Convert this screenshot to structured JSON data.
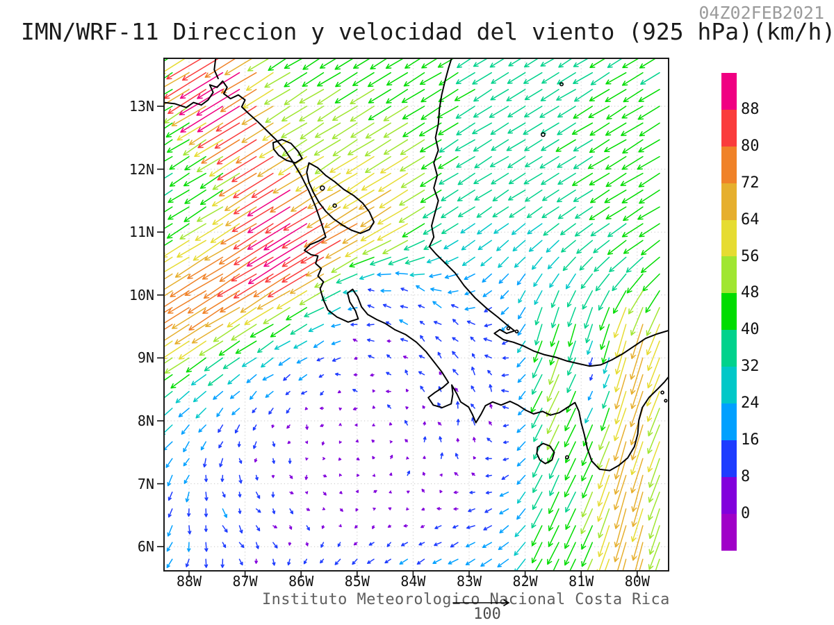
{
  "header": {
    "timestamp": "04Z02FEB2021",
    "title": "IMN/WRF-11 Direccion y velocidad del viento (925 hPa)(km/h)"
  },
  "footer": {
    "institute": "Instituto Meteorologico Nacional Costa Rica",
    "reference_label": "100"
  },
  "axes": {
    "lat_ticks": [
      {
        "label": "13N",
        "value": 13
      },
      {
        "label": "12N",
        "value": 12
      },
      {
        "label": "11N",
        "value": 11
      },
      {
        "label": "10N",
        "value": 10
      },
      {
        "label": "9N",
        "value": 9
      },
      {
        "label": "8N",
        "value": 8
      },
      {
        "label": "7N",
        "value": 7
      },
      {
        "label": "6N",
        "value": 6
      }
    ],
    "lon_ticks": [
      {
        "label": "88W",
        "value": -88
      },
      {
        "label": "87W",
        "value": -87
      },
      {
        "label": "86W",
        "value": -86
      },
      {
        "label": "85W",
        "value": -85
      },
      {
        "label": "84W",
        "value": -84
      },
      {
        "label": "83W",
        "value": -83
      },
      {
        "label": "82W",
        "value": -82
      },
      {
        "label": "81W",
        "value": -81
      },
      {
        "label": "80W",
        "value": -80
      }
    ]
  },
  "colorbar": {
    "labels_top_to_bottom": [
      "88",
      "80",
      "72",
      "64",
      "56",
      "48",
      "40",
      "32",
      "24",
      "16",
      "8",
      "0"
    ]
  },
  "chart_data": {
    "type": "vector_field",
    "title": "IMN/WRF-11 Direccion y velocidad del viento (925 hPa)(km/h)",
    "time": "04Z02FEB2021",
    "level_hpa": 925,
    "units": "km/h",
    "lon_range": [
      -88.45,
      -79.44
    ],
    "lat_range": [
      5.62,
      13.76
    ],
    "grid_step_deg": 0.3,
    "reference_vector": 100,
    "legend_position": "right",
    "grid_lat_lines": [
      6,
      7,
      8,
      9,
      10,
      11,
      12,
      13
    ],
    "grid_lon_lines": [
      -88,
      -87,
      -86,
      -85,
      -84,
      -83,
      -82,
      -81,
      -80
    ],
    "speed_levels": [
      0,
      8,
      16,
      24,
      32,
      40,
      48,
      56,
      64,
      72,
      80,
      88
    ],
    "speed_colors_ascending": [
      "#A000C8",
      "#8200DC",
      "#1E3CFF",
      "#00A0FF",
      "#00C8C8",
      "#00D28C",
      "#00DC00",
      "#A0E632",
      "#E6DC32",
      "#E6AF2D",
      "#F08228",
      "#FA3C3C",
      "#F00082"
    ],
    "wind_model": {
      "base": {
        "u": -26,
        "v": -16
      },
      "additive": [
        {
          "name": "caribbean-east",
          "lon": -79.6,
          "slon": 1.3,
          "lat": 11.8,
          "slat": 2.6,
          "u": -12,
          "v": -7
        },
        {
          "name": "top-center-green",
          "lon": -84.3,
          "slon": 1.6,
          "lat": 13.2,
          "slat": 1.3,
          "u": -10,
          "v": -6
        },
        {
          "name": "nicaragua-band",
          "lon": -86.6,
          "slon": 1.6,
          "lat": 12.4,
          "slat": 1.1,
          "u": -12,
          "v": -8
        },
        {
          "name": "hotspot-west",
          "lon": -86.2,
          "slon": 0.55,
          "lat": 10.95,
          "slat": 0.4,
          "u": -8,
          "v": -5
        },
        {
          "name": "hotspot-papagayo",
          "lon": -85.75,
          "slon": 0.5,
          "lat": 10.4,
          "slat": 0.35,
          "u": -6,
          "v": -4
        },
        {
          "name": "fonseca-gap",
          "lon": -87.35,
          "slon": 0.6,
          "lat": 13.5,
          "slat": 0.5,
          "u": -34,
          "v": -20
        },
        {
          "name": "panama-caribbean-turn",
          "lon": -81.6,
          "slon": 1.3,
          "lat": 9.95,
          "slat": 0.75,
          "u": 16,
          "v": -4
        },
        {
          "name": "cr-westward-gap",
          "lon": -84.05,
          "slon": 0.6,
          "lat": 9.95,
          "slat": 0.5,
          "u": -18,
          "v": 6
        }
      ],
      "line_jets": [
        {
          "name": "papagayo-jet",
          "lon_ref": -85.3,
          "lat0": 10.75,
          "slope": 0.35,
          "width": 0.8,
          "lon_c": -87.4,
          "lon_s": 3.0,
          "east_cut": -84.2,
          "east_s": 0.4,
          "u": -44,
          "v": -27
        },
        {
          "name": "nicaragua-coast-jet",
          "lon_ref": -87.4,
          "lat0": 13.2,
          "slope": -1.28,
          "width": 0.55,
          "lon_c": -86.7,
          "lon_s": 0.8,
          "east_cut": -85.2,
          "east_s": 0.5,
          "u": -30,
          "v": -18
        }
      ],
      "wake": {
        "max": 0.96,
        "blobs": [
          {
            "lon": -85.2,
            "slon": 2.2,
            "lat": 7.55,
            "slat": 1.3,
            "a": 1.1
          },
          {
            "lon": -83.55,
            "slon": 1.0,
            "lat": 8.75,
            "slat": 0.8,
            "a": 0.9
          },
          {
            "lon": -84.35,
            "slon": 0.75,
            "lat": 9.9,
            "slat": 0.55,
            "a": 0.85
          },
          {
            "lon": -87.3,
            "slon": 1.0,
            "lat": 6.2,
            "slat": 0.9,
            "a": 0.6
          }
        ]
      },
      "gyre": {
        "lon": -85.2,
        "lat": 7.7,
        "s": 5
      },
      "noise": {
        "amp": 3.2
      },
      "south_jets": [
        {
          "name": "panama-jet-west",
          "lon": -81.62,
          "slon": 0.28,
          "lat_cut": 9.2,
          "lat_s": 0.5,
          "u": 0,
          "v": -14
        },
        {
          "name": "panama-jet-broad",
          "lon": -80.55,
          "slon": 0.85,
          "lat_cut": 9.3,
          "lat_s": 0.55,
          "u": 5,
          "v": -30
        },
        {
          "name": "panama-jet-yellow",
          "lon": -80.15,
          "slon": 0.3,
          "lat_cut": 9.0,
          "lat_s": 0.6,
          "u": 0,
          "v": -18
        },
        {
          "name": "panama-jet-east",
          "lon": -79.55,
          "slon": 0.45,
          "lat_cut": 9.5,
          "lat_s": 0.6,
          "u": 6,
          "v": -16
        }
      ],
      "spots": [
        {
          "name": "chiriqui-gap",
          "lon": -81.1,
          "slon": 0.4,
          "lat": 8.5,
          "slat": 0.5,
          "u": -8,
          "v": -20
        }
      ],
      "lee": [
        {
          "lon": -80.75,
          "slon": 0.3,
          "lat": 8.75,
          "slat": 0.55,
          "a": 0.85
        }
      ],
      "jitter": {
        "u": 0.05,
        "v": 0.05
      },
      "speed_cap": {
        "start": 84,
        "soft": 9,
        "range": 6
      }
    }
  },
  "map": {
    "coastlines": {
      "pacific": [
        [
          -88.45,
          13.06
        ],
        [
          -88.25,
          13.04
        ],
        [
          -88.05,
          12.98
        ],
        [
          -87.92,
          13.06
        ],
        [
          -87.78,
          13.02
        ],
        [
          -87.66,
          13.1
        ],
        [
          -87.57,
          13.22
        ],
        [
          -87.63,
          13.34
        ],
        [
          -87.5,
          13.3
        ],
        [
          -87.4,
          13.4
        ],
        [
          -87.32,
          13.3
        ],
        [
          -87.38,
          13.2
        ],
        [
          -87.26,
          13.12
        ],
        [
          -87.12,
          13.18
        ],
        [
          -87.0,
          13.1
        ],
        [
          -87.06,
          12.99
        ],
        [
          -86.93,
          12.88
        ],
        [
          -86.78,
          12.76
        ],
        [
          -86.62,
          12.62
        ],
        [
          -86.46,
          12.48
        ],
        [
          -86.3,
          12.32
        ],
        [
          -86.15,
          12.12
        ],
        [
          -86.0,
          11.9
        ],
        [
          -85.86,
          11.65
        ],
        [
          -85.74,
          11.4
        ],
        [
          -85.64,
          11.15
        ],
        [
          -85.56,
          10.92
        ],
        [
          -85.68,
          10.86
        ],
        [
          -85.84,
          10.8
        ],
        [
          -85.94,
          10.71
        ],
        [
          -85.82,
          10.64
        ],
        [
          -85.7,
          10.62
        ],
        [
          -85.74,
          10.5
        ],
        [
          -85.64,
          10.42
        ],
        [
          -85.7,
          10.3
        ],
        [
          -85.6,
          10.21
        ],
        [
          -85.66,
          10.1
        ],
        [
          -85.6,
          9.92
        ],
        [
          -85.52,
          9.76
        ],
        [
          -85.36,
          9.65
        ],
        [
          -85.16,
          9.57
        ],
        [
          -84.98,
          9.62
        ],
        [
          -85.03,
          9.75
        ],
        [
          -85.13,
          9.89
        ],
        [
          -85.17,
          10.03
        ],
        [
          -85.08,
          10.09
        ],
        [
          -84.99,
          9.97
        ],
        [
          -84.92,
          9.81
        ],
        [
          -84.81,
          9.69
        ],
        [
          -84.65,
          9.61
        ],
        [
          -84.5,
          9.55
        ],
        [
          -84.33,
          9.45
        ],
        [
          -84.13,
          9.37
        ],
        [
          -83.94,
          9.25
        ],
        [
          -83.77,
          9.1
        ],
        [
          -83.63,
          8.94
        ],
        [
          -83.49,
          8.78
        ],
        [
          -83.37,
          8.61
        ],
        [
          -83.47,
          8.53
        ],
        [
          -83.61,
          8.45
        ],
        [
          -83.73,
          8.37
        ],
        [
          -83.64,
          8.25
        ],
        [
          -83.48,
          8.21
        ],
        [
          -83.32,
          8.27
        ],
        [
          -83.29,
          8.43
        ],
        [
          -83.31,
          8.57
        ],
        [
          -83.22,
          8.43
        ],
        [
          -83.15,
          8.3
        ],
        [
          -83.01,
          8.22
        ],
        [
          -82.94,
          8.1
        ],
        [
          -82.88,
          7.97
        ],
        [
          -82.79,
          8.1
        ],
        [
          -82.71,
          8.24
        ],
        [
          -82.58,
          8.3
        ],
        [
          -82.43,
          8.25
        ],
        [
          -82.27,
          8.31
        ],
        [
          -82.13,
          8.25
        ],
        [
          -81.99,
          8.17
        ],
        [
          -81.85,
          8.11
        ],
        [
          -81.69,
          8.15
        ],
        [
          -81.55,
          8.09
        ],
        [
          -81.39,
          8.13
        ],
        [
          -81.25,
          8.21
        ],
        [
          -81.11,
          8.29
        ],
        [
          -81.04,
          8.15
        ],
        [
          -81.0,
          7.97
        ],
        [
          -80.94,
          7.77
        ],
        [
          -80.89,
          7.56
        ],
        [
          -80.81,
          7.36
        ],
        [
          -80.67,
          7.23
        ],
        [
          -80.49,
          7.21
        ],
        [
          -80.33,
          7.29
        ],
        [
          -80.17,
          7.41
        ],
        [
          -80.05,
          7.59
        ],
        [
          -79.99,
          7.79
        ],
        [
          -79.97,
          8.01
        ],
        [
          -79.91,
          8.21
        ],
        [
          -79.79,
          8.37
        ],
        [
          -79.63,
          8.51
        ],
        [
          -79.51,
          8.62
        ],
        [
          -79.42,
          8.72
        ]
      ],
      "caribbean": [
        [
          -83.3,
          13.8
        ],
        [
          -83.37,
          13.6
        ],
        [
          -83.43,
          13.4
        ],
        [
          -83.49,
          13.18
        ],
        [
          -83.53,
          12.96
        ],
        [
          -83.55,
          12.72
        ],
        [
          -83.6,
          12.5
        ],
        [
          -83.55,
          12.3
        ],
        [
          -83.63,
          12.1
        ],
        [
          -83.57,
          11.9
        ],
        [
          -83.63,
          11.7
        ],
        [
          -83.55,
          11.5
        ],
        [
          -83.61,
          11.3
        ],
        [
          -83.67,
          11.1
        ],
        [
          -83.63,
          10.92
        ],
        [
          -83.71,
          10.77
        ],
        [
          -83.59,
          10.65
        ],
        [
          -83.43,
          10.51
        ],
        [
          -83.25,
          10.35
        ],
        [
          -83.09,
          10.15
        ],
        [
          -82.89,
          9.95
        ],
        [
          -82.69,
          9.79
        ],
        [
          -82.49,
          9.65
        ],
        [
          -82.33,
          9.53
        ],
        [
          -82.19,
          9.43
        ],
        [
          -82.33,
          9.39
        ],
        [
          -82.45,
          9.45
        ],
        [
          -82.55,
          9.39
        ],
        [
          -82.39,
          9.29
        ],
        [
          -82.21,
          9.25
        ],
        [
          -82.03,
          9.19
        ],
        [
          -81.85,
          9.11
        ],
        [
          -81.65,
          9.05
        ],
        [
          -81.45,
          9.01
        ],
        [
          -81.25,
          8.95
        ],
        [
          -81.05,
          8.91
        ],
        [
          -80.85,
          8.87
        ],
        [
          -80.65,
          8.89
        ],
        [
          -80.45,
          8.97
        ],
        [
          -80.25,
          9.07
        ],
        [
          -80.05,
          9.19
        ],
        [
          -79.85,
          9.31
        ],
        [
          -79.65,
          9.38
        ],
        [
          -79.42,
          9.44
        ]
      ],
      "estuary": [
        [
          -87.52,
          13.8
        ],
        [
          -87.55,
          13.58
        ],
        [
          -87.48,
          13.44
        ]
      ]
    },
    "closed_outlines": {
      "lake_nicaragua": [
        [
          -85.86,
          12.1
        ],
        [
          -85.7,
          12.02
        ],
        [
          -85.56,
          11.9
        ],
        [
          -85.4,
          11.8
        ],
        [
          -85.24,
          11.68
        ],
        [
          -85.06,
          11.58
        ],
        [
          -84.9,
          11.46
        ],
        [
          -84.78,
          11.32
        ],
        [
          -84.7,
          11.16
        ],
        [
          -84.78,
          11.04
        ],
        [
          -84.94,
          10.98
        ],
        [
          -85.1,
          11.03
        ],
        [
          -85.26,
          11.11
        ],
        [
          -85.42,
          11.21
        ],
        [
          -85.56,
          11.33
        ],
        [
          -85.68,
          11.47
        ],
        [
          -85.78,
          11.63
        ],
        [
          -85.86,
          11.79
        ],
        [
          -85.9,
          11.95
        ]
      ],
      "lake_managua": [
        [
          -86.5,
          12.42
        ],
        [
          -86.34,
          12.47
        ],
        [
          -86.18,
          12.41
        ],
        [
          -86.06,
          12.29
        ],
        [
          -85.98,
          12.17
        ],
        [
          -86.1,
          12.1
        ],
        [
          -86.26,
          12.14
        ],
        [
          -86.4,
          12.22
        ],
        [
          -86.49,
          12.32
        ]
      ],
      "coiba_island": [
        [
          -81.78,
          7.58
        ],
        [
          -81.68,
          7.64
        ],
        [
          -81.56,
          7.6
        ],
        [
          -81.48,
          7.5
        ],
        [
          -81.52,
          7.38
        ],
        [
          -81.64,
          7.32
        ],
        [
          -81.74,
          7.38
        ],
        [
          -81.79,
          7.48
        ]
      ]
    },
    "islands": [
      {
        "name": "providencia",
        "lon": -81.35,
        "lat": 13.35,
        "r": 2.2
      },
      {
        "name": "san-andres",
        "lon": -81.68,
        "lat": 12.55,
        "r": 2.6
      },
      {
        "name": "ometepe-1",
        "lon": -85.62,
        "lat": 11.7,
        "r": 3.0
      },
      {
        "name": "ometepe-2",
        "lon": -85.4,
        "lat": 11.42,
        "r": 2.4
      },
      {
        "name": "bocas-1",
        "lon": -82.3,
        "lat": 9.47,
        "r": 2.0
      },
      {
        "name": "bocas-2",
        "lon": -82.15,
        "lat": 9.42,
        "r": 2.0
      },
      {
        "name": "cebaco",
        "lon": -81.25,
        "lat": 7.42,
        "r": 2.2
      },
      {
        "name": "pearl-1",
        "lon": -79.55,
        "lat": 8.45,
        "r": 2.0
      },
      {
        "name": "pearl-2",
        "lon": -79.49,
        "lat": 8.32,
        "r": 1.8
      }
    ]
  }
}
